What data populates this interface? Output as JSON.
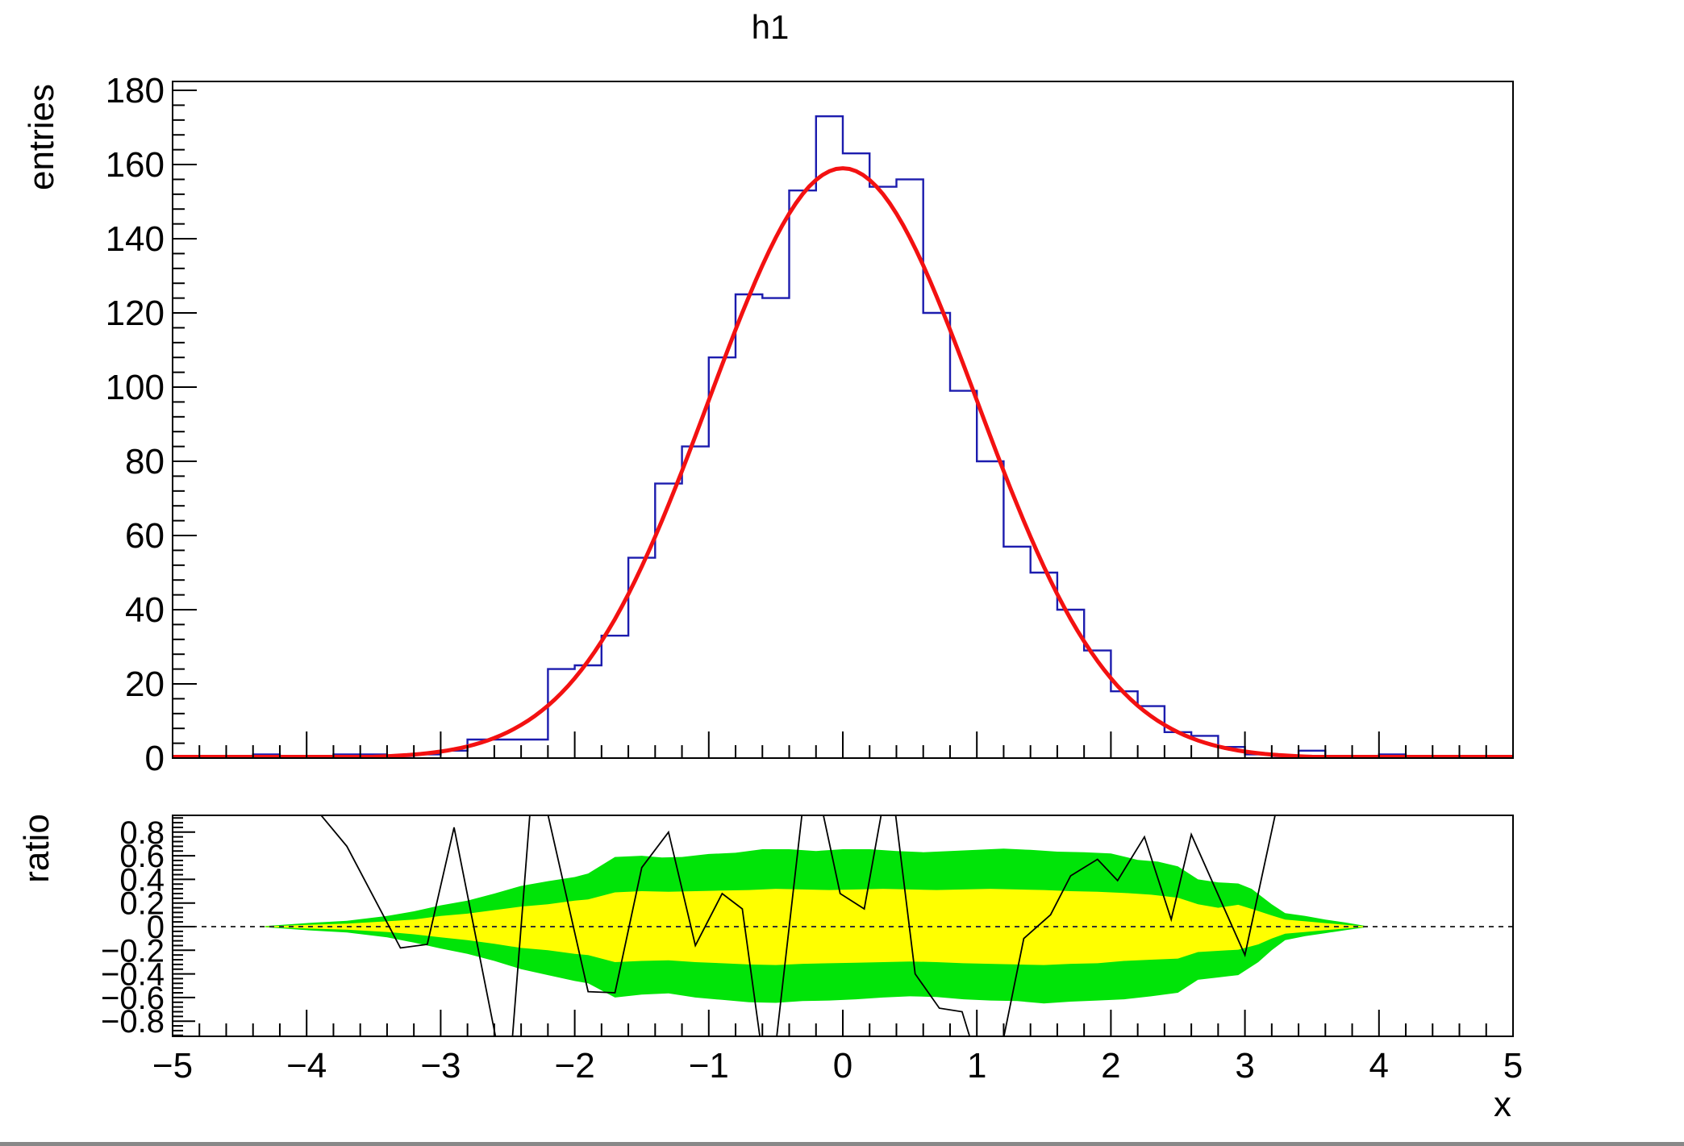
{
  "title": "h1",
  "colors": {
    "background": "#ffffff",
    "frame": "#000000",
    "hist_line": "#1c1cae",
    "fit_line": "#f31111",
    "band_outer": "#00e408",
    "band_inner": "#ffff00",
    "zero_line": "#333333",
    "text": "#000000"
  },
  "chart_data": [
    {
      "type": "bar",
      "subtype": "histogram-with-gaussian-fit",
      "title": "h1",
      "xlabel": "x",
      "ylabel": "entries",
      "xlim": [
        -5,
        5
      ],
      "ylim": [
        0,
        182.4
      ],
      "grid": false,
      "legend": "none",
      "bin_start": -5,
      "bin_width": 0.2,
      "bin_counts": [
        0,
        0,
        0,
        1,
        0,
        0,
        1,
        1,
        0,
        1,
        2,
        5,
        5,
        5,
        24,
        25,
        33,
        54,
        74,
        84,
        108,
        125,
        124,
        153,
        173,
        163,
        154,
        156,
        120,
        99,
        80,
        57,
        50,
        40,
        29,
        18,
        14,
        7,
        6,
        3,
        1,
        0,
        2,
        0,
        0,
        1,
        0,
        0,
        0,
        0
      ],
      "fit": {
        "model": "gaussian",
        "amplitude": 159,
        "mean": 0.0,
        "sigma": 1.0
      },
      "yticks": {
        "labels": [
          "0",
          "20",
          "40",
          "60",
          "80",
          "100",
          "120",
          "140",
          "160",
          "180"
        ],
        "values": [
          0,
          20,
          40,
          60,
          80,
          100,
          120,
          140,
          160,
          180
        ],
        "minor_step": 4
      },
      "xticks": {
        "minor_step": 0.2,
        "major_step": 1,
        "labels_shown": false
      }
    },
    {
      "type": "area",
      "subtype": "ratio-residual-with-confidence-bands",
      "ylabel": "ratio",
      "xlim": [
        -5,
        5
      ],
      "ylim": [
        -0.928,
        0.942
      ],
      "zero_line_y": 0,
      "yticks": {
        "labels": [
          "0.8",
          "0.6",
          "0.4",
          "0.2",
          "0",
          "−0.2",
          "−0.4",
          "−0.6",
          "−0.8"
        ],
        "values": [
          0.8,
          0.6,
          0.4,
          0.2,
          0,
          -0.2,
          -0.4,
          -0.6,
          -0.8
        ],
        "minor_step": 0.04
      },
      "xticks": {
        "labels": [
          "−5",
          "−4",
          "−3",
          "−2",
          "−1",
          "0",
          "1",
          "2",
          "3",
          "4",
          "5"
        ],
        "values": [
          -5,
          -4,
          -3,
          -2,
          -1,
          0,
          1,
          2,
          3,
          4,
          5
        ],
        "minor_step": 0.2
      },
      "band_outer_sigma2": {
        "top": [
          [
            -4.31,
            0.005
          ],
          [
            -4.0,
            0.03
          ],
          [
            -3.7,
            0.05
          ],
          [
            -3.4,
            0.09
          ],
          [
            -3.2,
            0.13
          ],
          [
            -3.0,
            0.18
          ],
          [
            -2.8,
            0.22
          ],
          [
            -2.6,
            0.28
          ],
          [
            -2.4,
            0.345
          ],
          [
            -2.2,
            0.385
          ],
          [
            -2.0,
            0.42
          ],
          [
            -1.9,
            0.45
          ],
          [
            -1.7,
            0.59
          ],
          [
            -1.5,
            0.6
          ],
          [
            -1.35,
            0.585
          ],
          [
            -1.2,
            0.59
          ],
          [
            -1.0,
            0.615
          ],
          [
            -0.8,
            0.625
          ],
          [
            -0.6,
            0.655
          ],
          [
            -0.4,
            0.655
          ],
          [
            -0.2,
            0.64
          ],
          [
            0.0,
            0.655
          ],
          [
            0.2,
            0.655
          ],
          [
            0.4,
            0.64
          ],
          [
            0.6,
            0.63
          ],
          [
            0.8,
            0.64
          ],
          [
            1.0,
            0.65
          ],
          [
            1.2,
            0.66
          ],
          [
            1.4,
            0.65
          ],
          [
            1.6,
            0.635
          ],
          [
            1.8,
            0.63
          ],
          [
            2.0,
            0.62
          ],
          [
            2.2,
            0.565
          ],
          [
            2.35,
            0.55
          ],
          [
            2.5,
            0.51
          ],
          [
            2.65,
            0.4
          ],
          [
            2.8,
            0.375
          ],
          [
            2.95,
            0.365
          ],
          [
            3.05,
            0.32
          ],
          [
            3.2,
            0.19
          ],
          [
            3.3,
            0.115
          ],
          [
            3.45,
            0.09
          ],
          [
            3.6,
            0.06
          ],
          [
            3.75,
            0.035
          ],
          [
            3.9,
            0.006
          ]
        ],
        "bottom": [
          [
            -4.31,
            -0.005
          ],
          [
            -4.0,
            -0.03
          ],
          [
            -3.7,
            -0.05
          ],
          [
            -3.4,
            -0.09
          ],
          [
            -3.2,
            -0.135
          ],
          [
            -3.0,
            -0.185
          ],
          [
            -2.8,
            -0.23
          ],
          [
            -2.6,
            -0.29
          ],
          [
            -2.4,
            -0.36
          ],
          [
            -2.2,
            -0.41
          ],
          [
            -2.0,
            -0.46
          ],
          [
            -1.9,
            -0.48
          ],
          [
            -1.7,
            -0.6
          ],
          [
            -1.5,
            -0.575
          ],
          [
            -1.3,
            -0.565
          ],
          [
            -1.1,
            -0.6
          ],
          [
            -0.9,
            -0.62
          ],
          [
            -0.7,
            -0.64
          ],
          [
            -0.5,
            -0.645
          ],
          [
            -0.3,
            -0.63
          ],
          [
            -0.1,
            -0.625
          ],
          [
            0.1,
            -0.615
          ],
          [
            0.3,
            -0.6
          ],
          [
            0.5,
            -0.59
          ],
          [
            0.7,
            -0.595
          ],
          [
            0.9,
            -0.615
          ],
          [
            1.1,
            -0.625
          ],
          [
            1.3,
            -0.63
          ],
          [
            1.5,
            -0.65
          ],
          [
            1.7,
            -0.635
          ],
          [
            1.9,
            -0.625
          ],
          [
            2.1,
            -0.615
          ],
          [
            2.3,
            -0.59
          ],
          [
            2.5,
            -0.56
          ],
          [
            2.65,
            -0.45
          ],
          [
            2.8,
            -0.43
          ],
          [
            2.95,
            -0.41
          ],
          [
            3.1,
            -0.3
          ],
          [
            3.2,
            -0.2
          ],
          [
            3.3,
            -0.115
          ],
          [
            3.45,
            -0.08
          ],
          [
            3.6,
            -0.055
          ],
          [
            3.75,
            -0.03
          ],
          [
            3.9,
            -0.006
          ]
        ]
      },
      "band_inner_sigma1": {
        "top": [
          [
            -4.31,
            0.002
          ],
          [
            -4.0,
            0.015
          ],
          [
            -3.7,
            0.025
          ],
          [
            -3.4,
            0.045
          ],
          [
            -3.2,
            0.06
          ],
          [
            -3.0,
            0.09
          ],
          [
            -2.8,
            0.11
          ],
          [
            -2.6,
            0.14
          ],
          [
            -2.4,
            0.17
          ],
          [
            -2.2,
            0.19
          ],
          [
            -2.0,
            0.22
          ],
          [
            -1.9,
            0.23
          ],
          [
            -1.7,
            0.29
          ],
          [
            -1.5,
            0.3
          ],
          [
            -1.3,
            0.295
          ],
          [
            -1.1,
            0.3
          ],
          [
            -0.9,
            0.305
          ],
          [
            -0.7,
            0.31
          ],
          [
            -0.5,
            0.32
          ],
          [
            -0.3,
            0.315
          ],
          [
            -0.1,
            0.31
          ],
          [
            0.1,
            0.315
          ],
          [
            0.3,
            0.32
          ],
          [
            0.5,
            0.315
          ],
          [
            0.7,
            0.31
          ],
          [
            0.9,
            0.315
          ],
          [
            1.1,
            0.32
          ],
          [
            1.3,
            0.315
          ],
          [
            1.5,
            0.31
          ],
          [
            1.7,
            0.3
          ],
          [
            1.9,
            0.295
          ],
          [
            2.1,
            0.285
          ],
          [
            2.3,
            0.27
          ],
          [
            2.5,
            0.245
          ],
          [
            2.65,
            0.19
          ],
          [
            2.8,
            0.16
          ],
          [
            2.95,
            0.185
          ],
          [
            3.05,
            0.15
          ],
          [
            3.2,
            0.095
          ],
          [
            3.3,
            0.06
          ],
          [
            3.45,
            0.045
          ],
          [
            3.6,
            0.03
          ],
          [
            3.75,
            0.015
          ],
          [
            3.9,
            0.003
          ]
        ],
        "bottom": [
          [
            -4.31,
            -0.002
          ],
          [
            -4.0,
            -0.015
          ],
          [
            -3.7,
            -0.025
          ],
          [
            -3.4,
            -0.045
          ],
          [
            -3.2,
            -0.065
          ],
          [
            -3.0,
            -0.09
          ],
          [
            -2.8,
            -0.115
          ],
          [
            -2.6,
            -0.145
          ],
          [
            -2.4,
            -0.18
          ],
          [
            -2.2,
            -0.2
          ],
          [
            -2.0,
            -0.23
          ],
          [
            -1.9,
            -0.24
          ],
          [
            -1.7,
            -0.3
          ],
          [
            -1.5,
            -0.29
          ],
          [
            -1.3,
            -0.285
          ],
          [
            -1.1,
            -0.3
          ],
          [
            -0.9,
            -0.31
          ],
          [
            -0.7,
            -0.32
          ],
          [
            -0.5,
            -0.325
          ],
          [
            -0.3,
            -0.315
          ],
          [
            -0.1,
            -0.31
          ],
          [
            0.1,
            -0.305
          ],
          [
            0.3,
            -0.3
          ],
          [
            0.5,
            -0.295
          ],
          [
            0.7,
            -0.3
          ],
          [
            0.9,
            -0.31
          ],
          [
            1.1,
            -0.315
          ],
          [
            1.3,
            -0.32
          ],
          [
            1.5,
            -0.325
          ],
          [
            1.7,
            -0.315
          ],
          [
            1.9,
            -0.31
          ],
          [
            2.1,
            -0.29
          ],
          [
            2.3,
            -0.28
          ],
          [
            2.5,
            -0.27
          ],
          [
            2.65,
            -0.215
          ],
          [
            2.8,
            -0.205
          ],
          [
            2.95,
            -0.195
          ],
          [
            3.1,
            -0.15
          ],
          [
            3.2,
            -0.1
          ],
          [
            3.3,
            -0.06
          ],
          [
            3.45,
            -0.045
          ],
          [
            3.6,
            -0.03
          ],
          [
            3.75,
            -0.015
          ],
          [
            3.9,
            -0.003
          ]
        ]
      },
      "residual_line": [
        [
          -4.3,
          1.5
        ],
        [
          -3.7,
          0.68
        ],
        [
          -3.3,
          -0.18
        ],
        [
          -3.1,
          -0.15
        ],
        [
          -2.9,
          0.84
        ],
        [
          -2.5,
          -1.45
        ],
        [
          -2.3,
          1.45
        ],
        [
          -1.9,
          -0.55
        ],
        [
          -1.7,
          -0.56
        ],
        [
          -1.5,
          0.5
        ],
        [
          -1.3,
          0.8
        ],
        [
          -1.1,
          -0.16
        ],
        [
          -0.9,
          0.28
        ],
        [
          -0.75,
          0.15
        ],
        [
          -0.55,
          -1.5
        ],
        [
          -0.25,
          1.5
        ],
        [
          -0.02,
          0.28
        ],
        [
          0.16,
          0.15
        ],
        [
          0.35,
          1.35
        ],
        [
          0.54,
          -0.4
        ],
        [
          0.72,
          -0.69
        ],
        [
          0.89,
          -0.72
        ],
        [
          1.1,
          -1.5
        ],
        [
          1.35,
          -0.1
        ],
        [
          1.55,
          0.1
        ],
        [
          1.7,
          0.43
        ],
        [
          1.9,
          0.57
        ],
        [
          2.05,
          0.39
        ],
        [
          2.25,
          0.76
        ],
        [
          2.45,
          0.06
        ],
        [
          2.6,
          0.78
        ],
        [
          3.0,
          -0.24
        ],
        [
          3.35,
          1.6
        ]
      ]
    }
  ]
}
